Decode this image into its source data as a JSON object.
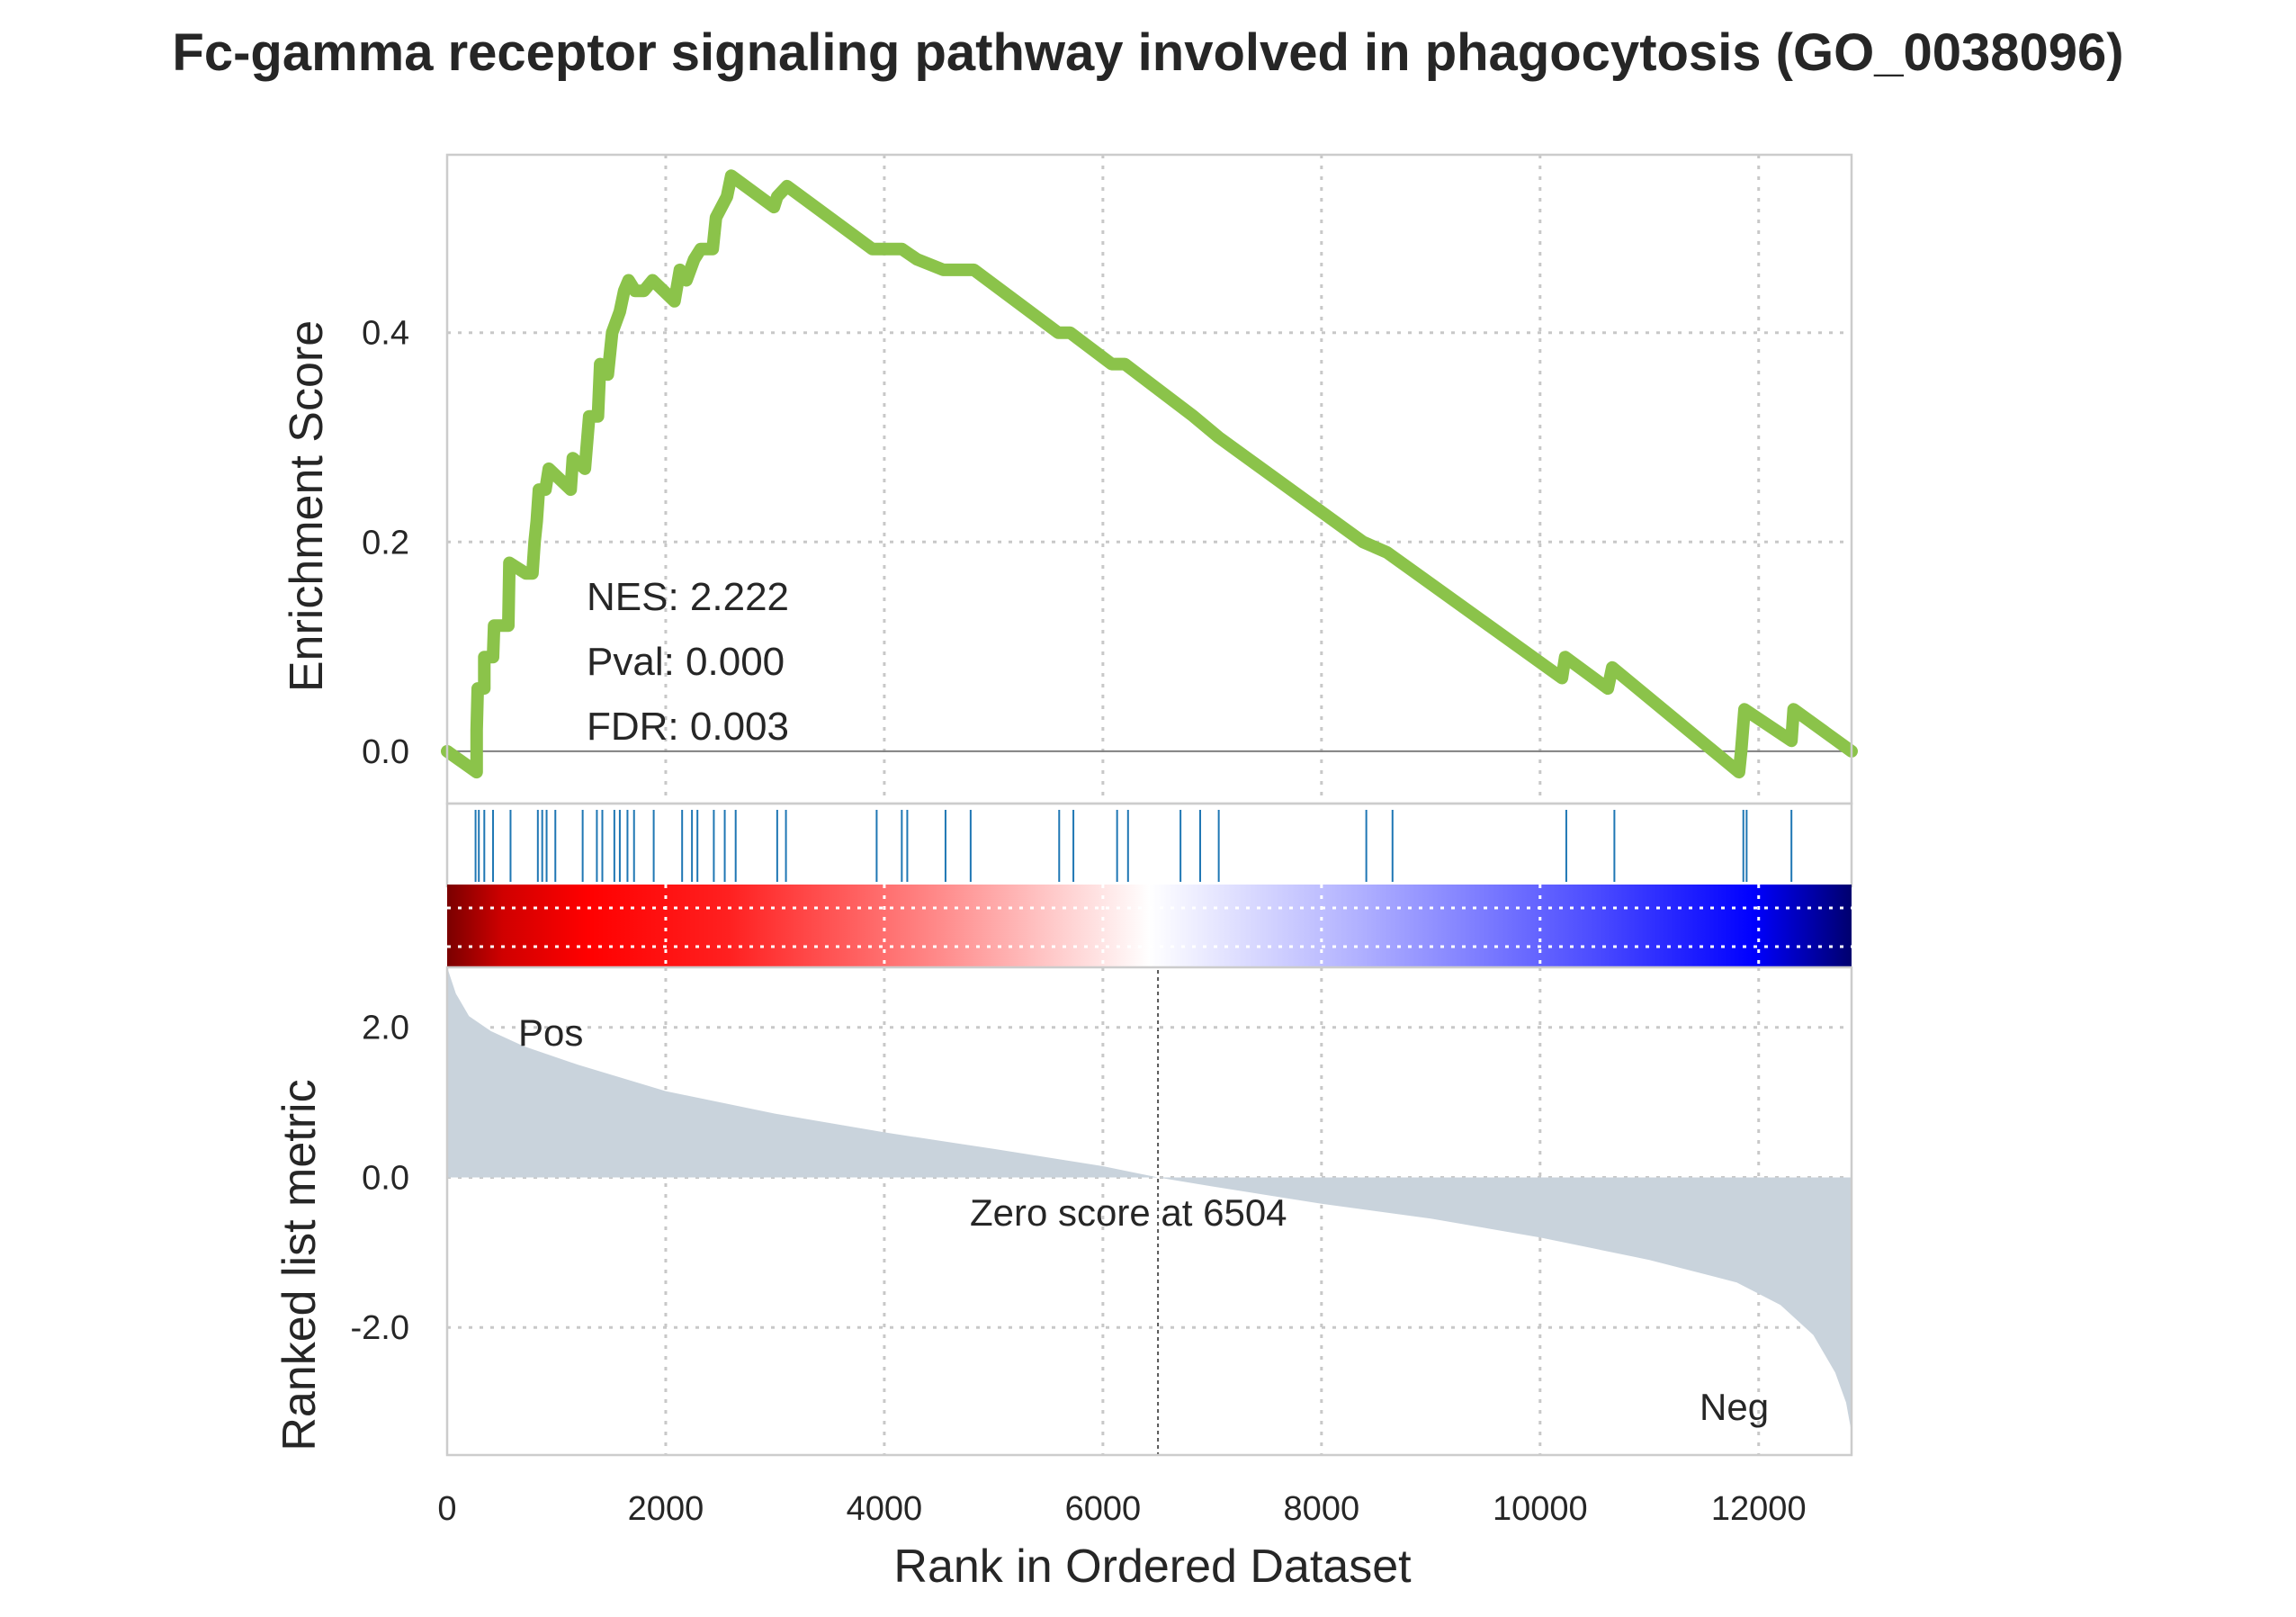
{
  "chart_data": {
    "type": "line",
    "title": "Fc-gamma receptor signaling pathway involved in phagocytosis (GO_0038096)",
    "xlabel": "Rank in Ordered Dataset",
    "xlim": [
      0,
      12850
    ],
    "x_ticks": [
      "0",
      "2000",
      "4000",
      "6000",
      "8000",
      "10000",
      "12000"
    ],
    "enrichment": {
      "ylabel": "Enrichment Score",
      "ylim": [
        -0.05,
        0.57
      ],
      "y_ticks": [
        "0.0",
        "0.2",
        "0.4"
      ],
      "color": "#8bc34a",
      "points": [
        [
          0,
          0.0
        ],
        [
          270,
          -0.02
        ],
        [
          270,
          0.02
        ],
        [
          280,
          0.06
        ],
        [
          340,
          0.06
        ],
        [
          340,
          0.09
        ],
        [
          420,
          0.09
        ],
        [
          430,
          0.12
        ],
        [
          560,
          0.12
        ],
        [
          570,
          0.18
        ],
        [
          720,
          0.17
        ],
        [
          780,
          0.17
        ],
        [
          800,
          0.2
        ],
        [
          820,
          0.22
        ],
        [
          840,
          0.25
        ],
        [
          900,
          0.25
        ],
        [
          930,
          0.27
        ],
        [
          1130,
          0.25
        ],
        [
          1150,
          0.28
        ],
        [
          1260,
          0.27
        ],
        [
          1300,
          0.32
        ],
        [
          1380,
          0.32
        ],
        [
          1400,
          0.37
        ],
        [
          1470,
          0.36
        ],
        [
          1510,
          0.4
        ],
        [
          1580,
          0.42
        ],
        [
          1620,
          0.44
        ],
        [
          1660,
          0.45
        ],
        [
          1720,
          0.44
        ],
        [
          1800,
          0.44
        ],
        [
          1880,
          0.45
        ],
        [
          2080,
          0.43
        ],
        [
          2130,
          0.46
        ],
        [
          2190,
          0.45
        ],
        [
          2260,
          0.47
        ],
        [
          2320,
          0.48
        ],
        [
          2430,
          0.48
        ],
        [
          2460,
          0.51
        ],
        [
          2560,
          0.53
        ],
        [
          2600,
          0.55
        ],
        [
          2990,
          0.52
        ],
        [
          3020,
          0.53
        ],
        [
          3110,
          0.54
        ],
        [
          3890,
          0.48
        ],
        [
          4130,
          0.48
        ],
        [
          4160,
          0.48
        ],
        [
          4300,
          0.47
        ],
        [
          4540,
          0.46
        ],
        [
          4780,
          0.46
        ],
        [
          4820,
          0.46
        ],
        [
          5590,
          0.4
        ],
        [
          5700,
          0.4
        ],
        [
          6080,
          0.37
        ],
        [
          6200,
          0.37
        ],
        [
          6830,
          0.32
        ],
        [
          7060,
          0.3
        ],
        [
          8380,
          0.2
        ],
        [
          8600,
          0.19
        ],
        [
          10200,
          0.07
        ],
        [
          10230,
          0.09
        ],
        [
          10620,
          0.06
        ],
        [
          10660,
          0.08
        ],
        [
          11820,
          -0.02
        ],
        [
          11840,
          0.0
        ],
        [
          11870,
          0.04
        ],
        [
          12300,
          0.01
        ],
        [
          12320,
          0.04
        ],
        [
          12850,
          0.0
        ]
      ]
    },
    "hits": [
      260,
      290,
      340,
      420,
      580,
      830,
      870,
      910,
      990,
      1240,
      1370,
      1420,
      1530,
      1580,
      1650,
      1710,
      1890,
      2150,
      2240,
      2290,
      2440,
      2540,
      2640,
      3020,
      3100,
      3930,
      4160,
      4210,
      4560,
      4790,
      5600,
      5730,
      6130,
      6230,
      6710,
      6890,
      7060,
      8410,
      8650,
      10240,
      10680,
      11860,
      11890,
      12300
    ],
    "ranked_metric": {
      "ylabel": "Ranked list metric",
      "ylim": [
        -3.7,
        2.8
      ],
      "y_ticks": [
        "2.0",
        "0.0",
        "-2.0"
      ],
      "fill_color": "#c9d3dc",
      "points": [
        [
          0,
          2.8
        ],
        [
          80,
          2.45
        ],
        [
          200,
          2.15
        ],
        [
          400,
          1.95
        ],
        [
          700,
          1.75
        ],
        [
          1200,
          1.5
        ],
        [
          2000,
          1.15
        ],
        [
          3000,
          0.85
        ],
        [
          4000,
          0.6
        ],
        [
          5000,
          0.38
        ],
        [
          6000,
          0.15
        ],
        [
          6504,
          0.0
        ],
        [
          7000,
          -0.12
        ],
        [
          8000,
          -0.35
        ],
        [
          9000,
          -0.55
        ],
        [
          10000,
          -0.8
        ],
        [
          11000,
          -1.1
        ],
        [
          11800,
          -1.4
        ],
        [
          12200,
          -1.7
        ],
        [
          12500,
          -2.1
        ],
        [
          12700,
          -2.6
        ],
        [
          12800,
          -3.0
        ],
        [
          12850,
          -3.4
        ]
      ],
      "zero_cross": 6504
    },
    "annotations": {
      "nes": "NES: 2.222",
      "pval": "Pval: 0.000",
      "fdr": "FDR: 0.003",
      "pos_label": "Pos",
      "neg_label": "Neg",
      "zero_label": "Zero score at 6504"
    },
    "colors": {
      "pos": "#ff0000",
      "neg": "#0000ff",
      "hit": "#1f77b4"
    },
    "grid": true
  }
}
